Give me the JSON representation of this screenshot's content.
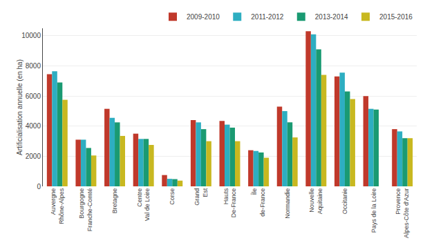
{
  "chart_data": {
    "type": "bar",
    "categories": [
      "Auvergne\nRhône-Alpes",
      "Bourgogne\nFranche-Comté",
      "Bretagne",
      "Centre\nVal de Loire",
      "Corse",
      "Grand\nEst",
      "Hauts\nDe-France",
      "Île\nde-France",
      "Normandie",
      "Nouvelle\nAquitaine",
      "Occitanie",
      "Pays de la Loire",
      "Provence\nAlpes-Côte d'Azur"
    ],
    "series": [
      {
        "name": "2009-2010",
        "color": "#c0392b",
        "values": [
          7450,
          3100,
          5150,
          3500,
          750,
          4400,
          4350,
          2400,
          5300,
          10300,
          7300,
          6000,
          3800
        ]
      },
      {
        "name": "2011-2012",
        "color": "#2eaec1",
        "values": [
          7650,
          3100,
          4550,
          3150,
          500,
          4250,
          4100,
          2350,
          5000,
          10100,
          7550,
          5150,
          3650
        ]
      },
      {
        "name": "2013-2014",
        "color": "#1a9a72",
        "values": [
          6900,
          2550,
          4250,
          3150,
          480,
          3800,
          3900,
          2250,
          4250,
          9100,
          6300,
          5100,
          3200
        ]
      },
      {
        "name": "2015-2016",
        "color": "#c8b820",
        "values": [
          5750,
          2050,
          3350,
          2750,
          380,
          3000,
          3000,
          1900,
          3250,
          7400,
          5800,
          0,
          3200
        ]
      }
    ],
    "ylabel": "Artificialisation annuelle (en ha)",
    "ylim": [
      0,
      10500
    ],
    "yticks": [
      0,
      2000,
      4000,
      6000,
      8000,
      10000
    ],
    "grid": true,
    "legend": "upper right"
  }
}
